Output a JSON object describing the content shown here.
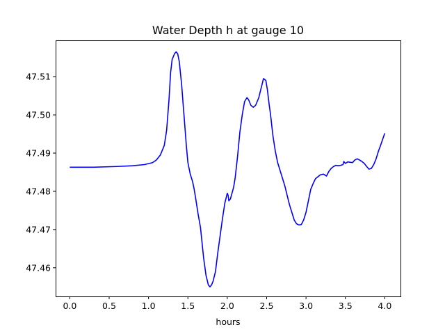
{
  "chart_data": {
    "type": "line",
    "title": "Water Depth h at gauge 10",
    "xlabel": "hours",
    "ylabel": "",
    "xlim": [
      -0.18,
      4.2
    ],
    "ylim": [
      47.4525,
      47.5195
    ],
    "xticks": [
      0.0,
      0.5,
      1.0,
      1.5,
      2.0,
      2.5,
      3.0,
      3.5,
      4.0
    ],
    "xtick_labels": [
      "0.0",
      "0.5",
      "1.0",
      "1.5",
      "2.0",
      "2.5",
      "3.0",
      "3.5",
      "4.0"
    ],
    "yticks": [
      47.46,
      47.47,
      47.48,
      47.49,
      47.5,
      47.51
    ],
    "ytick_labels": [
      "47.46",
      "47.47",
      "47.48",
      "47.49",
      "47.50",
      "47.51"
    ],
    "grid": false,
    "series": [
      {
        "color": "#0000ff",
        "x": [
          0.0,
          0.3,
          0.6,
          0.8,
          0.95,
          1.05,
          1.1,
          1.15,
          1.2,
          1.23,
          1.26,
          1.28,
          1.3,
          1.33,
          1.35,
          1.37,
          1.39,
          1.42,
          1.45,
          1.48,
          1.5,
          1.53,
          1.56,
          1.58,
          1.6,
          1.63,
          1.66,
          1.7,
          1.73,
          1.76,
          1.78,
          1.8,
          1.82,
          1.85,
          1.88,
          1.91,
          1.94,
          1.97,
          2.0,
          2.01,
          2.02,
          2.03,
          2.04,
          2.06,
          2.08,
          2.1,
          2.13,
          2.16,
          2.19,
          2.22,
          2.25,
          2.27,
          2.3,
          2.33,
          2.36,
          2.4,
          2.43,
          2.46,
          2.49,
          2.51,
          2.53,
          2.55,
          2.58,
          2.61,
          2.64,
          2.67,
          2.7,
          2.73,
          2.76,
          2.79,
          2.82,
          2.85,
          2.88,
          2.91,
          2.94,
          2.97,
          3.0,
          3.03,
          3.06,
          3.09,
          3.12,
          3.15,
          3.18,
          3.22,
          3.26,
          3.29,
          3.32,
          3.35,
          3.38,
          3.41,
          3.44,
          3.47,
          3.48,
          3.5,
          3.53,
          3.56,
          3.59,
          3.62,
          3.65,
          3.68,
          3.71,
          3.74,
          3.77,
          3.8,
          3.83,
          3.86,
          3.89,
          3.92,
          3.95,
          4.0
        ],
        "values": [
          47.4863,
          47.4863,
          47.4865,
          47.4867,
          47.487,
          47.4875,
          47.4882,
          47.4895,
          47.492,
          47.496,
          47.504,
          47.511,
          47.5145,
          47.516,
          47.5165,
          47.516,
          47.514,
          47.508,
          47.5,
          47.492,
          47.4875,
          47.4845,
          47.4825,
          47.4805,
          47.478,
          47.474,
          47.4705,
          47.4625,
          47.458,
          47.4555,
          47.455,
          47.4555,
          47.4565,
          47.459,
          47.464,
          47.4685,
          47.473,
          47.477,
          47.4795,
          47.479,
          47.4775,
          47.4778,
          47.478,
          47.4795,
          47.481,
          47.4835,
          47.489,
          47.4955,
          47.5,
          47.5035,
          47.5045,
          47.504,
          47.5025,
          47.502,
          47.5025,
          47.5045,
          47.507,
          47.5095,
          47.509,
          47.5065,
          47.503,
          47.5,
          47.4945,
          47.4905,
          47.4875,
          47.4855,
          47.4835,
          47.4815,
          47.479,
          47.4765,
          47.4745,
          47.4725,
          47.4715,
          47.4712,
          47.4713,
          47.4725,
          47.4745,
          47.4775,
          47.4805,
          47.482,
          47.4833,
          47.4838,
          47.4843,
          47.4845,
          47.484,
          47.4852,
          47.486,
          47.4865,
          47.4868,
          47.4867,
          47.4868,
          47.487,
          47.4878,
          47.4873,
          47.4877,
          47.4876,
          47.4875,
          47.4882,
          47.4885,
          47.4882,
          47.4878,
          47.4873,
          47.4865,
          47.4858,
          47.486,
          47.487,
          47.4885,
          47.4905,
          47.4922,
          47.4952
        ]
      }
    ]
  }
}
